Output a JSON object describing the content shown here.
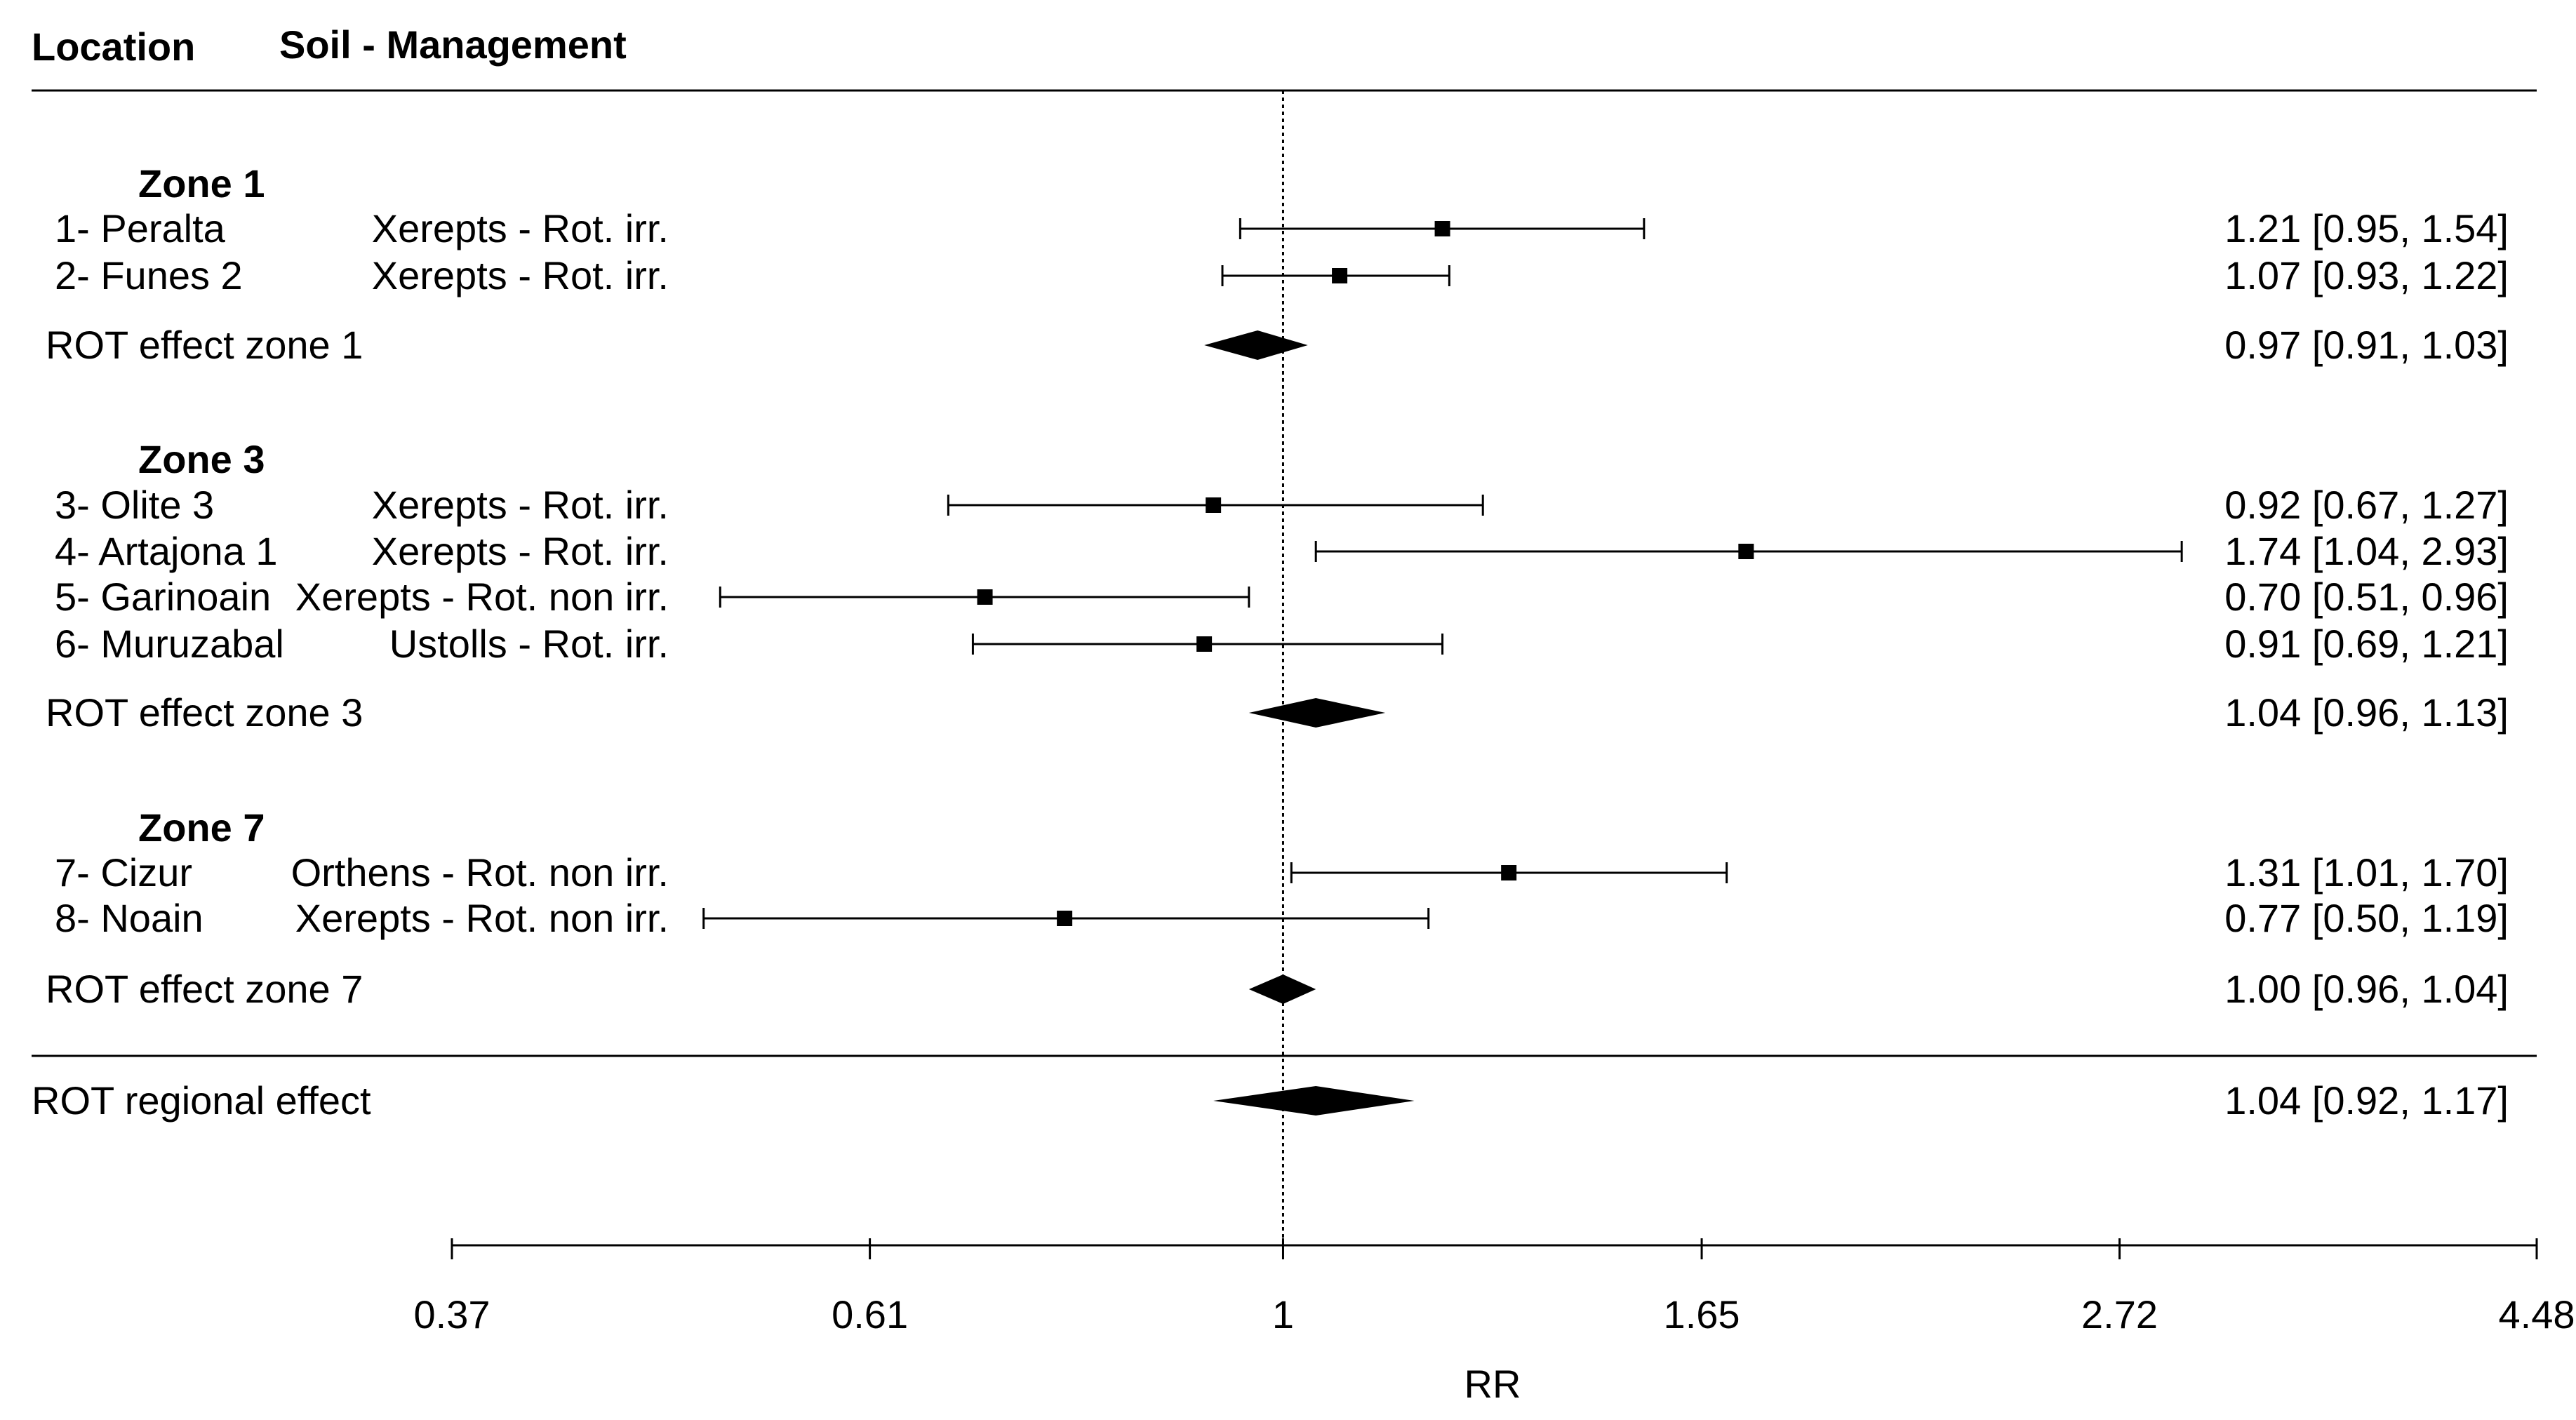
{
  "headers": {
    "location": "Location",
    "soil_management": "Soil - Management"
  },
  "chart_data": {
    "type": "forest",
    "xlabel": "RR",
    "x_scale": "log",
    "xlim": [
      0.37,
      4.48
    ],
    "reference_line": 1,
    "ticks": [
      "0.37",
      "0.61",
      "1",
      "1.65",
      "2.72",
      "4.48"
    ],
    "groups": [
      {
        "zone": "Zone 1",
        "studies": [
          {
            "location": "1- Peralta",
            "soil": "Xerepts - Rot. irr.",
            "rr": 1.21,
            "lo": 0.95,
            "hi": 1.54,
            "text": "1.21 [0.95, 1.54]"
          },
          {
            "location": "2- Funes 2",
            "soil": "Xerepts - Rot. irr.",
            "rr": 1.07,
            "lo": 0.93,
            "hi": 1.22,
            "text": "1.07 [0.93, 1.22]"
          }
        ],
        "summary": {
          "label": "ROT effect zone 1",
          "rr": 0.97,
          "lo": 0.91,
          "hi": 1.03,
          "text": "0.97 [0.91, 1.03]"
        }
      },
      {
        "zone": "Zone 3",
        "studies": [
          {
            "location": "3- Olite 3",
            "soil": "Xerepts - Rot. irr.",
            "rr": 0.92,
            "lo": 0.67,
            "hi": 1.27,
            "text": "0.92 [0.67, 1.27]"
          },
          {
            "location": "4- Artajona 1",
            "soil": "Xerepts - Rot. irr.",
            "rr": 1.74,
            "lo": 1.04,
            "hi": 2.93,
            "text": "1.74 [1.04, 2.93]"
          },
          {
            "location": "5- Garinoain",
            "soil": "Xerepts - Rot. non irr.",
            "rr": 0.7,
            "lo": 0.51,
            "hi": 0.96,
            "text": "0.70 [0.51, 0.96]"
          },
          {
            "location": "6- Muruzabal",
            "soil": "Ustolls - Rot. irr.",
            "rr": 0.91,
            "lo": 0.69,
            "hi": 1.21,
            "text": "0.91 [0.69, 1.21]"
          }
        ],
        "summary": {
          "label": "ROT effect zone 3",
          "rr": 1.04,
          "lo": 0.96,
          "hi": 1.13,
          "text": "1.04 [0.96, 1.13]"
        }
      },
      {
        "zone": "Zone 7",
        "studies": [
          {
            "location": "7- Cizur",
            "soil": "Orthens - Rot. non irr.",
            "rr": 1.31,
            "lo": 1.01,
            "hi": 1.7,
            "text": "1.31 [1.01, 1.70]"
          },
          {
            "location": "8- Noain",
            "soil": "Xerepts - Rot. non irr.",
            "rr": 0.77,
            "lo": 0.5,
            "hi": 1.19,
            "text": "0.77 [0.50, 1.19]"
          }
        ],
        "summary": {
          "label": "ROT effect zone 7",
          "rr": 1.0,
          "lo": 0.96,
          "hi": 1.04,
          "text": "1.00 [0.96, 1.04]"
        }
      }
    ],
    "overall": {
      "label": "ROT regional effect",
      "rr": 1.04,
      "lo": 0.92,
      "hi": 1.17,
      "text": "1.04 [0.92, 1.17]"
    }
  }
}
